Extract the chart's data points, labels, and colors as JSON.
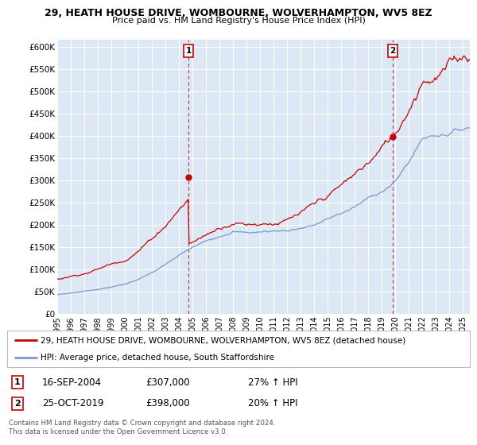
{
  "title1": "29, HEATH HOUSE DRIVE, WOMBOURNE, WOLVERHAMPTON, WV5 8EZ",
  "title2": "Price paid vs. HM Land Registry's House Price Index (HPI)",
  "ylabel_ticks": [
    "£0",
    "£50K",
    "£100K",
    "£150K",
    "£200K",
    "£250K",
    "£300K",
    "£350K",
    "£400K",
    "£450K",
    "£500K",
    "£550K",
    "£600K"
  ],
  "ytick_values": [
    0,
    50000,
    100000,
    150000,
    200000,
    250000,
    300000,
    350000,
    400000,
    450000,
    500000,
    550000,
    600000
  ],
  "ylim": [
    0,
    615000
  ],
  "xlim_start": 1995.0,
  "xlim_end": 2025.5,
  "sale1_x": 2004.71,
  "sale1_y": 307000,
  "sale2_x": 2019.81,
  "sale2_y": 398000,
  "sale1_date": "16-SEP-2004",
  "sale1_price": "£307,000",
  "sale1_hpi": "27% ↑ HPI",
  "sale2_date": "25-OCT-2019",
  "sale2_price": "£398,000",
  "sale2_hpi": "20% ↑ HPI",
  "line1_color": "#cc0000",
  "line2_color": "#7799cc",
  "background_color": "#ffffff",
  "plot_bg_color": "#dce8f5",
  "grid_color": "#ffffff",
  "legend1_text": "29, HEATH HOUSE DRIVE, WOMBOURNE, WOLVERHAMPTON, WV5 8EZ (detached house)",
  "legend2_text": "HPI: Average price, detached house, South Staffordshire",
  "footer1": "Contains HM Land Registry data © Crown copyright and database right 2024.",
  "footer2": "This data is licensed under the Open Government Licence v3.0.",
  "xtick_years": [
    1995,
    1996,
    1997,
    1998,
    1999,
    2000,
    2001,
    2002,
    2003,
    2004,
    2005,
    2006,
    2007,
    2008,
    2009,
    2010,
    2011,
    2012,
    2013,
    2014,
    2015,
    2016,
    2017,
    2018,
    2019,
    2020,
    2021,
    2022,
    2023,
    2024,
    2025
  ]
}
